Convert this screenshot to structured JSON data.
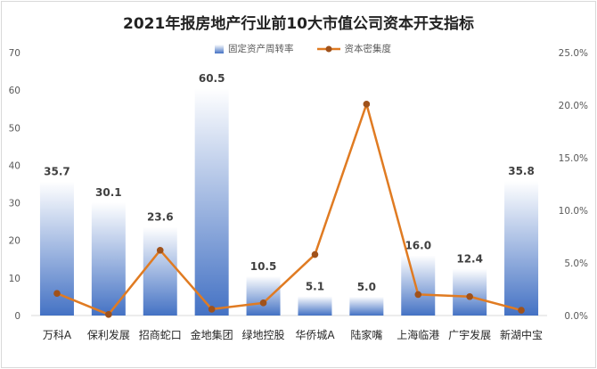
{
  "chart_data": {
    "type": "bar",
    "title": "2021年报房地产行业前10大市值公司资本开支指标",
    "categories": [
      "万科A",
      "保利发展",
      "招商蛇口",
      "金地集团",
      "绿地控股",
      "华侨城A",
      "陆家嘴",
      "上海临港",
      "广宇发展",
      "新湖中宝"
    ],
    "series": [
      {
        "name": "固定资产周转率",
        "type": "bar",
        "axis": "left",
        "values": [
          35.7,
          30.1,
          23.6,
          60.5,
          10.5,
          5.1,
          5.0,
          16.0,
          12.4,
          35.8
        ],
        "data_labels": [
          "35.7",
          "30.1",
          "23.6",
          "60.5",
          "10.5",
          "5.1",
          "5.0",
          "16.0",
          "12.4",
          "35.8"
        ]
      },
      {
        "name": "资本密集度",
        "type": "line",
        "axis": "right",
        "values": [
          2.1,
          0.1,
          6.2,
          0.6,
          1.2,
          5.8,
          20.1,
          2.0,
          1.8,
          0.5
        ]
      }
    ],
    "y_left": {
      "min": 0,
      "max": 70,
      "ticks": [
        "0",
        "10",
        "20",
        "30",
        "40",
        "50",
        "60",
        "70"
      ]
    },
    "y_right": {
      "min": 0,
      "max": 25,
      "ticks": [
        "0.0%",
        "5.0%",
        "10.0%",
        "15.0%",
        "20.0%",
        "25.0%"
      ]
    },
    "grid": false,
    "legend_position": "top",
    "colors": {
      "bar_top": "#ffffff",
      "bar_bottom": "#4472c4",
      "line": "#e07b22",
      "marker": "#a0521b"
    }
  }
}
